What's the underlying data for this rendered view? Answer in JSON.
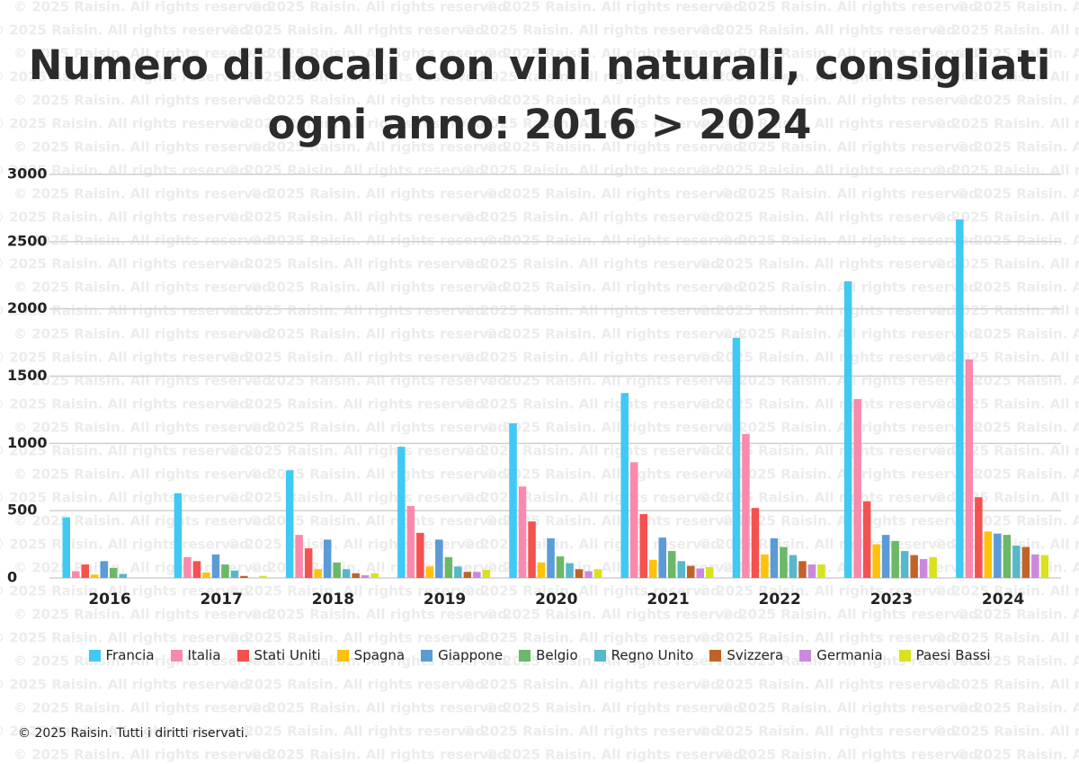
{
  "chart_data": {
    "type": "bar",
    "title": "Numero di locali con vini naturali, consigliati ogni anno: 2016 > 2024",
    "watermark": "© 2025 Raisin. All rights reserved.",
    "footer": "© 2025 Raisin. Tutti i diritti riservati.",
    "categories": [
      "2016",
      "2017",
      "2018",
      "2019",
      "2020",
      "2021",
      "2022",
      "2023",
      "2024"
    ],
    "ylim": [
      0,
      3000
    ],
    "yticks": [
      0,
      500,
      1000,
      1500,
      2000,
      2500,
      3000
    ],
    "grid": true,
    "legend": "bottom",
    "series": [
      {
        "name": "Francia",
        "color": "#40c9f3",
        "values": [
          450,
          630,
          800,
          975,
          1150,
          1375,
          1785,
          2205,
          2665
        ]
      },
      {
        "name": "Italia",
        "color": "#f98aab",
        "values": [
          50,
          155,
          320,
          535,
          680,
          860,
          1070,
          1330,
          1625
        ]
      },
      {
        "name": "Stati Uniti",
        "color": "#f5514f",
        "values": [
          100,
          125,
          220,
          335,
          420,
          475,
          520,
          570,
          600
        ]
      },
      {
        "name": "Spagna",
        "color": "#fdc20a",
        "values": [
          25,
          40,
          65,
          85,
          115,
          135,
          175,
          250,
          345
        ]
      },
      {
        "name": "Giappone",
        "color": "#5b9bd6",
        "values": [
          125,
          175,
          285,
          285,
          295,
          300,
          295,
          320,
          330
        ]
      },
      {
        "name": "Belgio",
        "color": "#6bb866",
        "values": [
          75,
          100,
          115,
          155,
          160,
          200,
          230,
          275,
          320
        ]
      },
      {
        "name": "Regno Unito",
        "color": "#58b7ca",
        "values": [
          30,
          55,
          65,
          85,
          110,
          125,
          170,
          200,
          240
        ]
      },
      {
        "name": "Svizzera",
        "color": "#c1622b",
        "values": [
          0,
          15,
          35,
          45,
          65,
          90,
          125,
          170,
          230
        ]
      },
      {
        "name": "Germania",
        "color": "#cb89dd",
        "values": [
          0,
          0,
          20,
          45,
          50,
          70,
          100,
          140,
          175
        ]
      },
      {
        "name": "Paesi Bassi",
        "color": "#d8e220",
        "values": [
          0,
          15,
          35,
          60,
          65,
          80,
          100,
          155,
          170
        ]
      }
    ]
  }
}
